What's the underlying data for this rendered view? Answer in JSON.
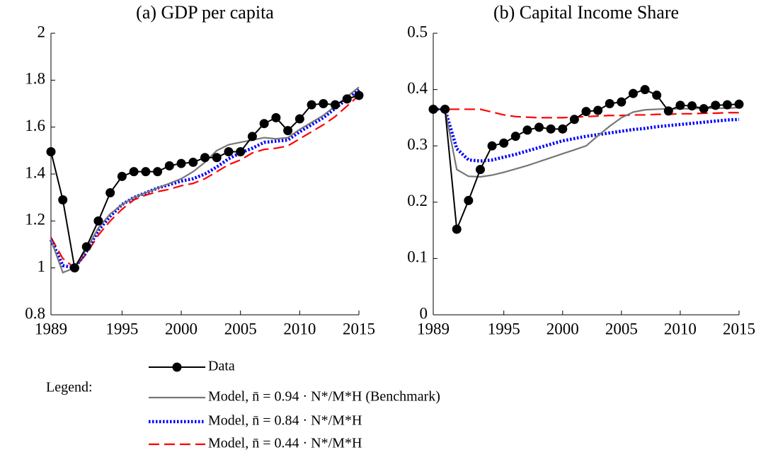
{
  "chart_data": [
    {
      "type": "line",
      "title": "(a) GDP per capita",
      "x": [
        1989,
        1990,
        1991,
        1992,
        1993,
        1994,
        1995,
        1996,
        1997,
        1998,
        1999,
        2000,
        2001,
        2002,
        2003,
        2004,
        2005,
        2006,
        2007,
        2008,
        2009,
        2010,
        2011,
        2012,
        2013,
        2014,
        2015
      ],
      "xlim": [
        1989,
        2015
      ],
      "xticks": [
        1989,
        1995,
        2000,
        2005,
        2010,
        2015
      ],
      "ylim": [
        0.8,
        2
      ],
      "yticks": [
        0.8,
        1,
        1.2,
        1.4,
        1.6,
        1.8,
        2
      ],
      "series": [
        {
          "name": "Data",
          "color": "#000000",
          "style": "solid",
          "marker": "circle",
          "values": [
            1.495,
            1.29,
            1.0,
            1.09,
            1.2,
            1.32,
            1.39,
            1.41,
            1.41,
            1.41,
            1.435,
            1.445,
            1.45,
            1.47,
            1.47,
            1.495,
            1.495,
            1.56,
            1.615,
            1.64,
            1.585,
            1.635,
            1.695,
            1.7,
            1.695,
            1.72,
            1.735
          ]
        },
        {
          "name": "Model, n̄ = 0.94 · N*/M*H (Benchmark)",
          "color": "#777777",
          "style": "solid",
          "values": [
            1.12,
            0.98,
            1.0,
            1.08,
            1.17,
            1.23,
            1.27,
            1.3,
            1.32,
            1.34,
            1.36,
            1.38,
            1.41,
            1.45,
            1.5,
            1.525,
            1.535,
            1.545,
            1.555,
            1.55,
            1.555,
            1.59,
            1.62,
            1.65,
            1.69,
            1.73,
            1.77
          ]
        },
        {
          "name": "Model, n̄ = 0.84 · N*/M*H",
          "color": "#0000ff",
          "style": "dotted",
          "values": [
            1.12,
            1.01,
            1.0,
            1.07,
            1.16,
            1.22,
            1.27,
            1.3,
            1.32,
            1.34,
            1.355,
            1.37,
            1.38,
            1.4,
            1.43,
            1.465,
            1.49,
            1.51,
            1.535,
            1.54,
            1.545,
            1.58,
            1.61,
            1.64,
            1.68,
            1.72,
            1.76
          ]
        },
        {
          "name": "Model, n̄ = 0.44 · N*/M*H",
          "color": "#ff0000",
          "style": "dashed",
          "values": [
            1.13,
            1.04,
            1.0,
            1.06,
            1.14,
            1.2,
            1.25,
            1.29,
            1.31,
            1.325,
            1.335,
            1.35,
            1.36,
            1.38,
            1.41,
            1.44,
            1.46,
            1.49,
            1.505,
            1.51,
            1.52,
            1.55,
            1.58,
            1.61,
            1.645,
            1.69,
            1.735
          ]
        }
      ]
    },
    {
      "type": "line",
      "title": "(b) Capital Income Share",
      "x": [
        1989,
        1990,
        1991,
        1992,
        1993,
        1994,
        1995,
        1996,
        1997,
        1998,
        1999,
        2000,
        2001,
        2002,
        2003,
        2004,
        2005,
        2006,
        2007,
        2008,
        2009,
        2010,
        2011,
        2012,
        2013,
        2014,
        2015
      ],
      "xlim": [
        1989,
        2015
      ],
      "xticks": [
        1989,
        1995,
        2000,
        2005,
        2010,
        2015
      ],
      "ylim": [
        0,
        0.5
      ],
      "yticks": [
        0,
        0.1,
        0.2,
        0.3,
        0.4,
        0.5
      ],
      "series": [
        {
          "name": "Data",
          "color": "#000000",
          "style": "solid",
          "marker": "circle",
          "values": [
            0.365,
            0.365,
            0.152,
            0.203,
            0.258,
            0.3,
            0.305,
            0.317,
            0.328,
            0.333,
            0.33,
            0.33,
            0.347,
            0.361,
            0.363,
            0.375,
            0.378,
            0.393,
            0.4,
            0.39,
            0.362,
            0.372,
            0.371,
            0.366,
            0.372,
            0.373,
            0.374
          ]
        },
        {
          "name": "Model, n̄ = 0.94 · N*/M*H (Benchmark)",
          "color": "#777777",
          "style": "solid",
          "values": [
            0.365,
            0.365,
            0.258,
            0.246,
            0.245,
            0.248,
            0.253,
            0.259,
            0.265,
            0.272,
            0.279,
            0.286,
            0.293,
            0.3,
            0.318,
            0.335,
            0.35,
            0.36,
            0.364,
            0.365,
            0.366,
            0.366,
            0.366,
            0.367,
            0.367,
            0.367,
            0.368
          ]
        },
        {
          "name": "Model, n̄ = 0.84 · N*/M*H",
          "color": "#0000ff",
          "style": "dotted",
          "values": [
            0.365,
            0.365,
            0.295,
            0.275,
            0.273,
            0.275,
            0.28,
            0.285,
            0.291,
            0.297,
            0.303,
            0.309,
            0.313,
            0.317,
            0.32,
            0.323,
            0.326,
            0.329,
            0.331,
            0.334,
            0.336,
            0.338,
            0.34,
            0.342,
            0.344,
            0.346,
            0.347
          ]
        },
        {
          "name": "Model, n̄ = 0.44 · N*/M*H",
          "color": "#ff0000",
          "style": "dashed",
          "values": [
            0.365,
            0.365,
            0.365,
            0.365,
            0.365,
            0.36,
            0.355,
            0.352,
            0.351,
            0.35,
            0.35,
            0.35,
            0.351,
            0.352,
            0.353,
            0.354,
            0.354,
            0.355,
            0.355,
            0.356,
            0.356,
            0.357,
            0.357,
            0.358,
            0.358,
            0.359,
            0.359
          ]
        }
      ]
    }
  ],
  "legend": {
    "title": "Legend:"
  }
}
